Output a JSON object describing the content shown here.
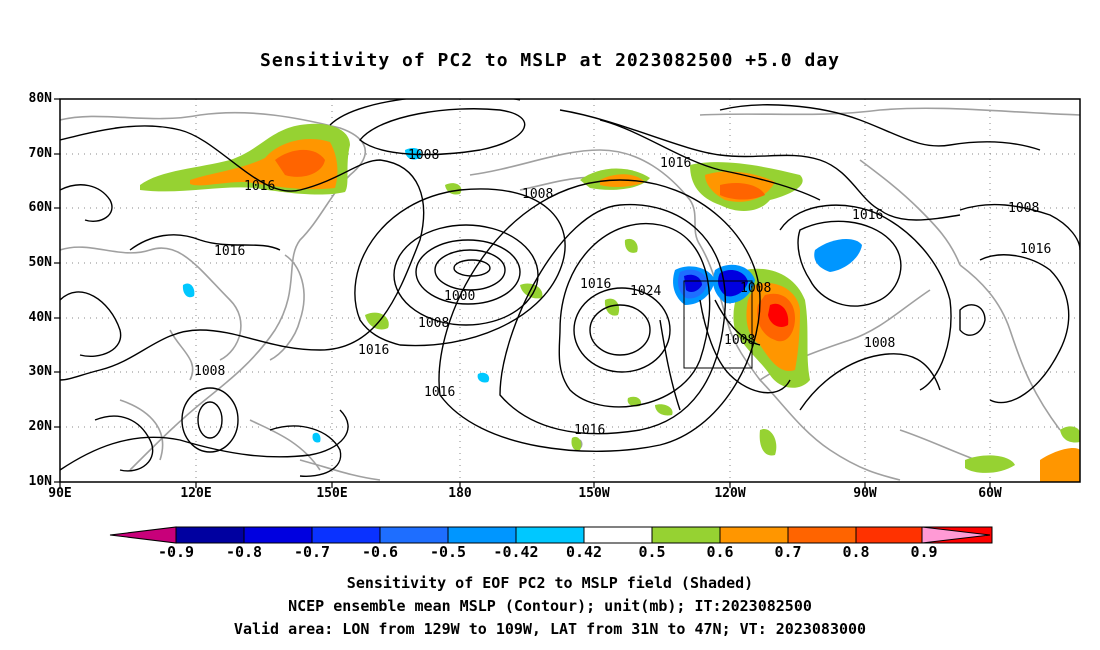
{
  "title": "Sensitivity of PC2 to MSLP at 2023082500 +5.0 day",
  "lat_ticks": [
    {
      "label": "80N"
    },
    {
      "label": "70N"
    },
    {
      "label": "60N"
    },
    {
      "label": "50N"
    },
    {
      "label": "40N"
    },
    {
      "label": "30N"
    },
    {
      "label": "20N"
    },
    {
      "label": "10N"
    }
  ],
  "lon_ticks": [
    {
      "label": "90E"
    },
    {
      "label": "120E"
    },
    {
      "label": "150E"
    },
    {
      "label": "180"
    },
    {
      "label": "150W"
    },
    {
      "label": "120W"
    },
    {
      "label": "90W"
    },
    {
      "label": "60W"
    }
  ],
  "colorbar": {
    "labels": [
      "-0.9",
      "-0.8",
      "-0.7",
      "-0.6",
      "-0.5",
      "-0.42",
      "0.42",
      "0.5",
      "0.6",
      "0.7",
      "0.8",
      "0.9"
    ],
    "colors": [
      "#0000a0",
      "#0000e0",
      "#0a32ff",
      "#1e6eff",
      "#0096ff",
      "#00c8ff",
      "#ffffff",
      "#96d232",
      "#ff9600",
      "#ff6400",
      "#ff3200",
      "#ff0000"
    ],
    "low_extend_color": "#c8007a",
    "high_extend_color": "#ff9ad5"
  },
  "contour_labels": [
    {
      "text": "1008"
    },
    {
      "text": "1016"
    },
    {
      "text": "1016"
    },
    {
      "text": "1008"
    },
    {
      "text": "1016"
    },
    {
      "text": "1000"
    },
    {
      "text": "1008"
    },
    {
      "text": "1016"
    },
    {
      "text": "1008"
    },
    {
      "text": "1016"
    },
    {
      "text": "1024"
    },
    {
      "text": "1008"
    },
    {
      "text": "1008"
    },
    {
      "text": "1016"
    },
    {
      "text": "1016"
    },
    {
      "text": "1008"
    },
    {
      "text": "1016"
    },
    {
      "text": "1008"
    }
  ],
  "captions": [
    "Sensitivity of EOF PC2 to MSLP field (Shaded)",
    "NCEP ensemble mean MSLP (Contour); unit(mb); IT:2023082500",
    "Valid area: LON from 129W to 109W, LAT from 31N to 47N; VT: 2023083000"
  ]
}
